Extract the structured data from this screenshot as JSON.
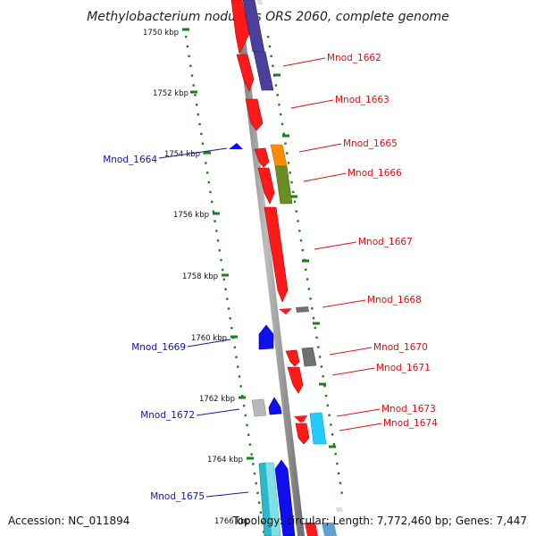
{
  "title": "Methylobacterium nodulans ORS 2060, complete genome",
  "accession": "Accession: NC_011894",
  "topology": "Topology: circular; Length: 7,772,460 bp; Genes: 7,447",
  "ticks": [
    "1750 kbp",
    "1752 kbp",
    "1754 kbp",
    "1756 kbp",
    "1758 kbp",
    "1760 kbp",
    "1762 kbp",
    "1764 kbp",
    "1766 kbp"
  ],
  "right_labels": [
    "Mnod_1662",
    "Mnod_1663",
    "Mnod_1665",
    "Mnod_1666",
    "Mnod_1667",
    "Mnod_1668",
    "Mnod_1670",
    "Mnod_1671",
    "Mnod_1673",
    "Mnod_1674"
  ],
  "left_labels": [
    "Mnod_1664",
    "Mnod_1669",
    "Mnod_1672",
    "Mnod_1675"
  ],
  "colors": {
    "red": "#ff1a1a",
    "red_dark": "#c40000",
    "blue": "#1010ee",
    "navy": "#4a3f9a",
    "orange": "#ff8c00",
    "olive": "#6b8e23",
    "gray": "#707070",
    "light_gray": "#b8b8b8",
    "cyan": "#22ccff",
    "teal": "#2bb8c8",
    "tick_green": "#1e7d1e",
    "label_red": "#dd1111",
    "label_blue": "#1414aa",
    "backbone": "#8c8c8c"
  }
}
